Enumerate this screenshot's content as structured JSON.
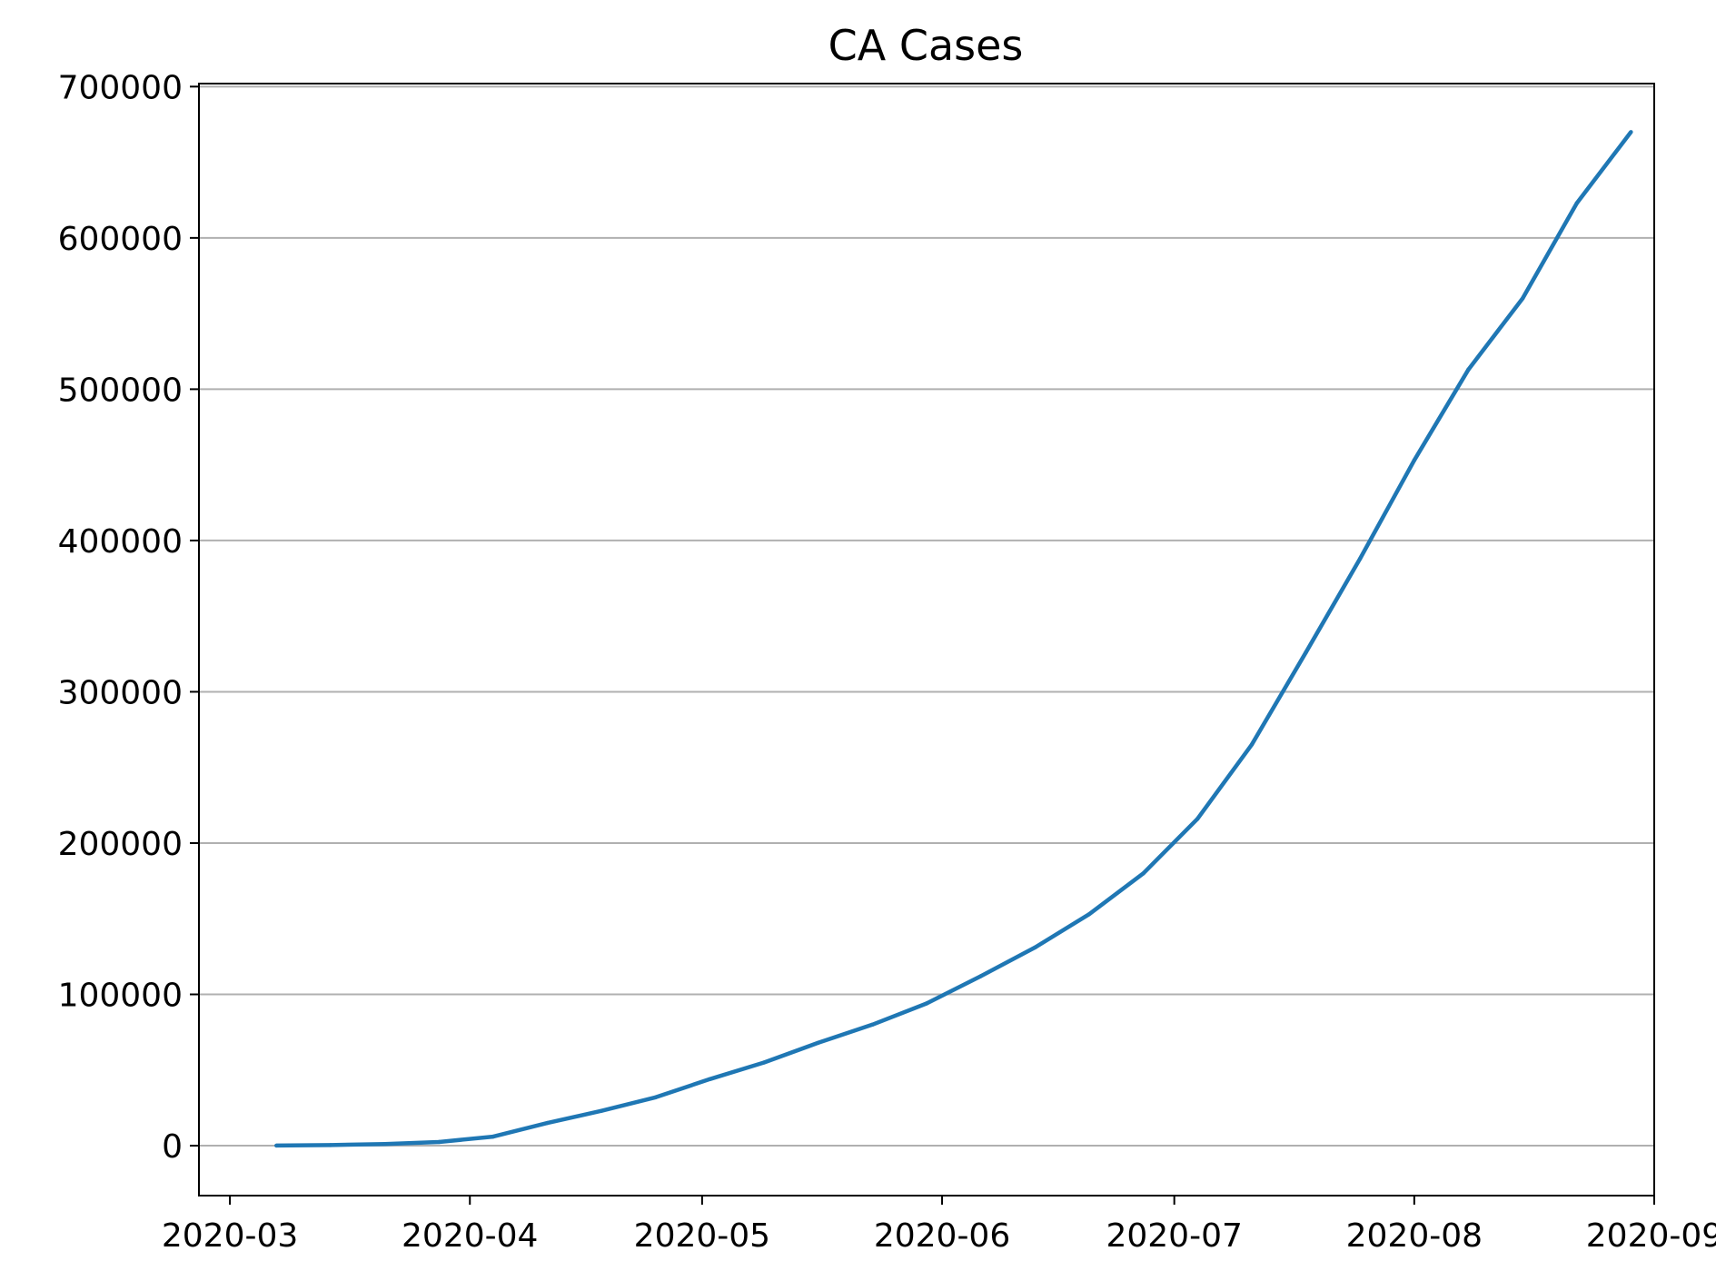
{
  "chart_data": {
    "type": "line",
    "title": "CA Cases",
    "xlabel": "",
    "ylabel": "",
    "x_type": "date",
    "xlim": [
      "2020-02-26",
      "2020-09-01"
    ],
    "ylim": [
      -33000,
      702000
    ],
    "x_ticks": [
      "2020-03",
      "2020-04",
      "2020-05",
      "2020-06",
      "2020-07",
      "2020-08",
      "2020-09"
    ],
    "x_tick_dates": [
      "2020-03-01",
      "2020-04-01",
      "2020-05-01",
      "2020-06-01",
      "2020-07-01",
      "2020-08-01",
      "2020-09-01"
    ],
    "y_ticks": [
      0,
      100000,
      200000,
      300000,
      400000,
      500000,
      600000,
      700000
    ],
    "y_tick_labels": [
      "0",
      "100000",
      "200000",
      "300000",
      "400000",
      "500000",
      "600000",
      "700000"
    ],
    "grid": "y-axis only",
    "legend": "none",
    "colors": {
      "line": "#1f77b4",
      "grid": "#b0b0b0",
      "axes": "#000000"
    },
    "series": [
      {
        "x": [
          "2020-03-07",
          "2020-03-14",
          "2020-03-21",
          "2020-03-28",
          "2020-04-04",
          "2020-04-11",
          "2020-04-18",
          "2020-04-25",
          "2020-05-02",
          "2020-05-09",
          "2020-05-16",
          "2020-05-23",
          "2020-05-30",
          "2020-06-06",
          "2020-06-13",
          "2020-06-20",
          "2020-06-27",
          "2020-07-04",
          "2020-07-11",
          "2020-07-18",
          "2020-07-25",
          "2020-08-01",
          "2020-08-08",
          "2020-08-15",
          "2020-08-22",
          "2020-08-29"
        ],
        "values": [
          100,
          400,
          1100,
          2400,
          6000,
          15000,
          23000,
          32000,
          44000,
          55000,
          68000,
          80000,
          94000,
          112000,
          131000,
          153000,
          180000,
          216000,
          265000,
          326000,
          388000,
          453000,
          513000,
          560000,
          623000,
          670000
        ]
      }
    ]
  }
}
